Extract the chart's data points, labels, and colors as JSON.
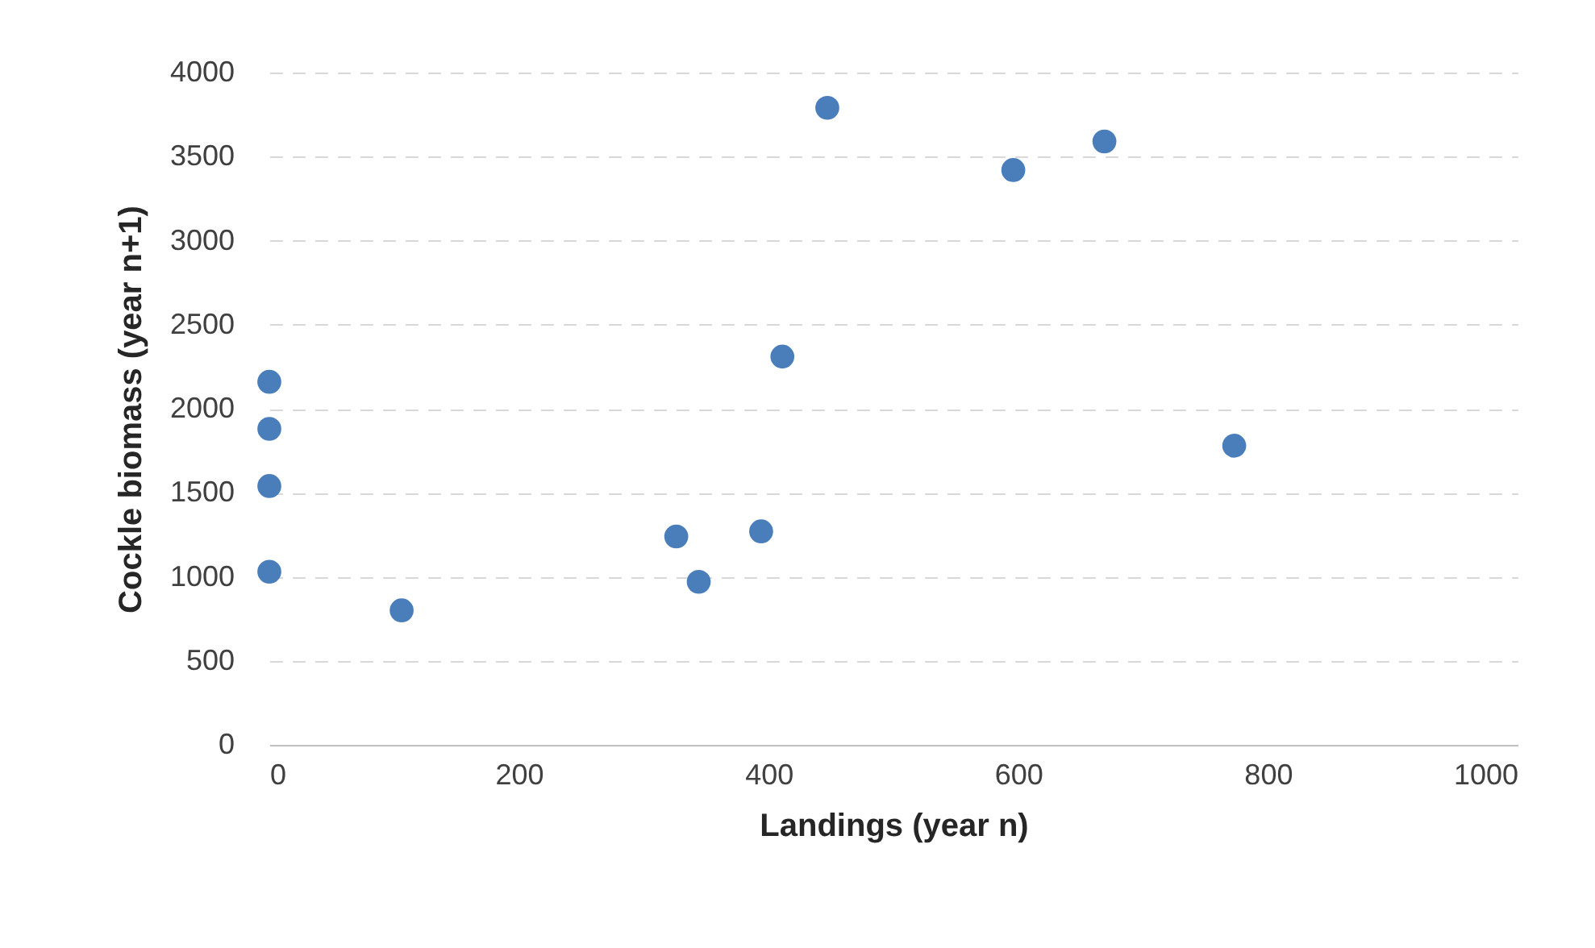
{
  "chart_data": {
    "type": "scatter",
    "xlabel": "Landings (year n)",
    "ylabel": "Cockle biomass (year n+1)",
    "x": [
      0,
      0,
      0,
      0,
      106,
      326,
      344,
      394,
      411,
      447,
      596,
      669,
      773
    ],
    "series": [
      {
        "color": "#4a7ebb",
        "values": [
          2160,
          1880,
          1540,
          1030,
          800,
          1240,
          970,
          1270,
          2310,
          3790,
          3420,
          3590,
          1780
        ]
      }
    ],
    "xlim": [
      0,
      1000
    ],
    "xticks": [
      0,
      200,
      400,
      600,
      800,
      1000
    ],
    "ylim": [
      0,
      4000
    ],
    "yticks": [
      0,
      500,
      1000,
      1500,
      2000,
      2500,
      3000,
      3500,
      4000
    ],
    "grid": "y",
    "marker": "circle",
    "legend": false
  }
}
